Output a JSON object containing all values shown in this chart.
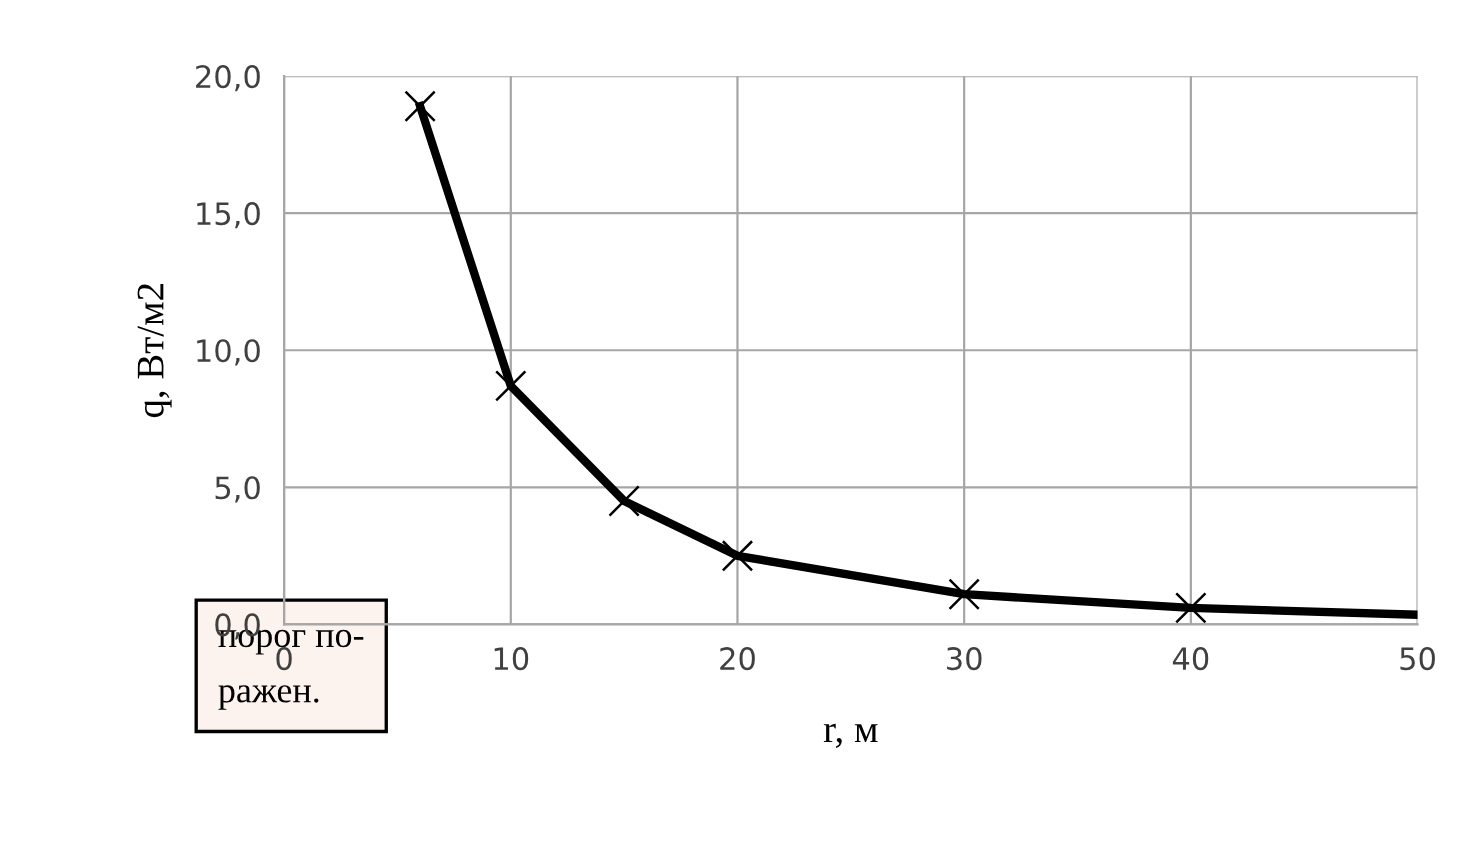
{
  "chart_data": {
    "type": "line",
    "xlabel": "r, м",
    "ylabel": "q, Вт/м2",
    "xlim": [
      0,
      50
    ],
    "xticks": [
      0,
      10,
      20,
      30,
      40,
      50
    ],
    "ylim": [
      0,
      20
    ],
    "yticks": [
      {
        "value": 0,
        "label": "0,0"
      },
      {
        "value": 5,
        "label": "5,0"
      },
      {
        "value": 10,
        "label": "10,0"
      },
      {
        "value": 15,
        "label": "15,0"
      },
      {
        "value": 20,
        "label": "20,0"
      }
    ],
    "grid": true,
    "legend": false,
    "series": [
      {
        "color": "#000000",
        "marker": "none",
        "line_style": "solid",
        "x": [
          6,
          10,
          15,
          20,
          30,
          40,
          50
        ],
        "values": [
          18.9,
          8.7,
          4.5,
          2.5,
          1.1,
          0.6,
          0.35
        ]
      },
      {
        "type": "scatter",
        "color": "#000000",
        "marker": "cross",
        "x": [
          6,
          10,
          15,
          20,
          30,
          40
        ],
        "values": [
          18.9,
          8.7,
          4.5,
          2.5,
          1.1,
          0.6
        ]
      }
    ],
    "annotations": [
      "порог по-\nражен."
    ]
  }
}
